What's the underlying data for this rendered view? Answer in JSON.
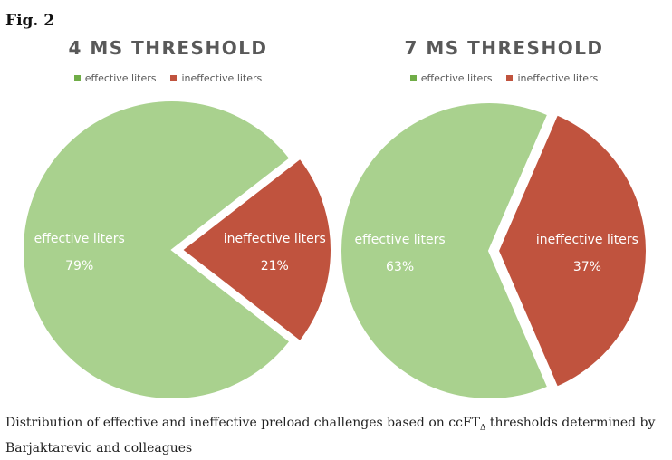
{
  "figure_label": "Fig. 2",
  "caption": {
    "before": "Distribution of effective and ineffective preload challenges based on ccFT",
    "subscript": "Δ",
    "after": " thresholds determined by Barjaktarevic and colleagues"
  },
  "colors": {
    "effective": "#a9d18e",
    "ineffective": "#c0533e",
    "legend_effective": "#70ad47",
    "legend_ineffective": "#c0533e"
  },
  "chart_data": [
    {
      "type": "pie",
      "title": "4 MS THRESHOLD",
      "legend": [
        "effective liters",
        "ineffective liters"
      ],
      "legend_position": "top",
      "slices": [
        {
          "label": "effective liters",
          "percent_label": "79%",
          "value": 79,
          "exploded": false
        },
        {
          "label": "ineffective liters",
          "percent_label": "21%",
          "value": 21,
          "exploded": true
        }
      ]
    },
    {
      "type": "pie",
      "title": "7 MS THRESHOLD",
      "legend": [
        "effective liters",
        "ineffective liters"
      ],
      "legend_position": "top",
      "slices": [
        {
          "label": "effective liters",
          "percent_label": "63%",
          "value": 63,
          "exploded": false
        },
        {
          "label": "ineffective liters",
          "percent_label": "37%",
          "value": 37,
          "exploded": true
        }
      ]
    }
  ]
}
